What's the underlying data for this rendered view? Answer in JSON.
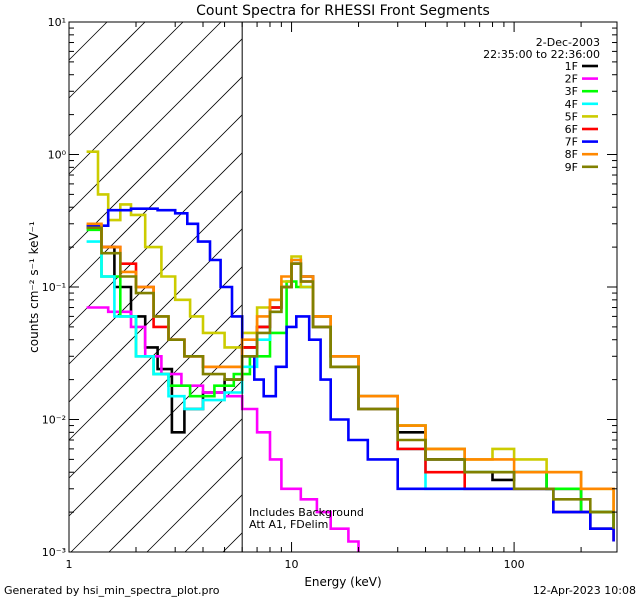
{
  "chart_data": {
    "type": "line",
    "title": "Count Spectra for RHESSI Front Segments",
    "xlabel": "Energy (keV)",
    "ylabel": "counts cm⁻² s⁻¹ keV⁻¹",
    "xscale": "log",
    "yscale": "log",
    "xlim": [
      1,
      290
    ],
    "ylim": [
      0.001,
      10
    ],
    "x_ticks": [
      {
        "value": 1,
        "label": "1"
      },
      {
        "value": 10,
        "label": "10"
      },
      {
        "value": 100,
        "label": "100"
      }
    ],
    "y_ticks": [
      {
        "value": 10,
        "label": "10¹"
      },
      {
        "value": 1,
        "label": "10⁰"
      },
      {
        "value": 0.1,
        "label": "10⁻¹"
      },
      {
        "value": 0.01,
        "label": "10⁻²"
      },
      {
        "value": 0.001,
        "label": "10⁻³"
      }
    ],
    "hatched_region": {
      "x_from": 1,
      "x_to": 6
    },
    "legend": {
      "date": "2-Dec-2003",
      "time_range": "22:35:00 to 22:36:00",
      "placement": "top-right"
    },
    "annotations": [
      "Includes Background",
      "Att A1, FDelim"
    ],
    "series": [
      {
        "name": "1F",
        "color": "#000000",
        "values": [
          [
            1.2,
            0.28
          ],
          [
            1.4,
            0.2
          ],
          [
            1.6,
            0.1
          ],
          [
            1.9,
            0.06
          ],
          [
            2.2,
            0.035
          ],
          [
            2.5,
            0.024
          ],
          [
            2.9,
            0.008
          ],
          [
            3.3,
            0.012
          ],
          [
            4,
            0.016
          ],
          [
            5,
            0.02
          ],
          [
            6,
            0.035
          ],
          [
            7,
            0.05
          ],
          [
            8,
            0.07
          ],
          [
            9,
            0.1
          ],
          [
            10,
            0.15
          ],
          [
            11,
            0.12
          ],
          [
            12.5,
            0.06
          ],
          [
            15,
            0.03
          ],
          [
            20,
            0.015
          ],
          [
            30,
            0.008
          ],
          [
            40,
            0.005
          ],
          [
            60,
            0.004
          ],
          [
            80,
            0.0035
          ],
          [
            100,
            0.004
          ],
          [
            140,
            0.003
          ],
          [
            200,
            0.002
          ],
          [
            280,
            0.0015
          ]
        ]
      },
      {
        "name": "2F",
        "color": "#ff00ff",
        "values": [
          [
            1.2,
            0.07
          ],
          [
            1.5,
            0.065
          ],
          [
            1.9,
            0.05
          ],
          [
            2.2,
            0.03
          ],
          [
            2.6,
            0.022
          ],
          [
            3.2,
            0.018
          ],
          [
            4,
            0.016
          ],
          [
            5,
            0.015
          ],
          [
            6,
            0.012
          ],
          [
            7,
            0.008
          ],
          [
            8,
            0.005
          ],
          [
            9,
            0.003
          ],
          [
            11,
            0.0025
          ],
          [
            13,
            0.002
          ],
          [
            15,
            0.0015
          ],
          [
            18,
            0.0012
          ],
          [
            20,
            0.001
          ]
        ]
      },
      {
        "name": "3F",
        "color": "#00ff00",
        "values": [
          [
            1.2,
            0.27
          ],
          [
            1.4,
            0.12
          ],
          [
            1.7,
            0.06
          ],
          [
            2,
            0.03
          ],
          [
            2.4,
            0.022
          ],
          [
            2.8,
            0.018
          ],
          [
            3.5,
            0.015
          ],
          [
            4.5,
            0.018
          ],
          [
            5.5,
            0.022
          ],
          [
            6.5,
            0.03
          ],
          [
            8,
            0.045
          ],
          [
            9.5,
            0.11
          ],
          [
            10.5,
            0.1
          ],
          [
            12.5,
            0.05
          ],
          [
            15,
            0.025
          ],
          [
            20,
            0.012
          ],
          [
            30,
            0.009
          ],
          [
            40,
            0.006
          ],
          [
            60,
            0.004
          ],
          [
            80,
            0.004
          ],
          [
            100,
            0.004
          ],
          [
            140,
            0.003
          ],
          [
            200,
            0.002
          ],
          [
            280,
            0.0015
          ]
        ]
      },
      {
        "name": "4F",
        "color": "#00ffff",
        "values": [
          [
            1.2,
            0.22
          ],
          [
            1.4,
            0.12
          ],
          [
            1.6,
            0.06
          ],
          [
            2,
            0.03
          ],
          [
            2.4,
            0.022
          ],
          [
            2.8,
            0.015
          ],
          [
            3.3,
            0.012
          ],
          [
            4,
            0.014
          ],
          [
            5,
            0.016
          ],
          [
            6,
            0.025
          ],
          [
            7,
            0.04
          ],
          [
            8,
            0.065
          ],
          [
            9,
            0.1
          ],
          [
            10,
            0.16
          ],
          [
            11,
            0.1
          ],
          [
            12.5,
            0.05
          ],
          [
            15,
            0.025
          ],
          [
            20,
            0.012
          ],
          [
            30,
            0.006
          ],
          [
            40,
            0.003
          ],
          [
            60,
            0.003
          ],
          [
            100,
            0.003
          ],
          [
            150,
            0.002
          ],
          [
            220,
            0.0015
          ],
          [
            280,
            0.0015
          ]
        ]
      },
      {
        "name": "5F",
        "color": "#cccc00",
        "values": [
          [
            1.2,
            1.05
          ],
          [
            1.35,
            0.5
          ],
          [
            1.5,
            0.32
          ],
          [
            1.7,
            0.42
          ],
          [
            1.9,
            0.35
          ],
          [
            2.2,
            0.2
          ],
          [
            2.6,
            0.12
          ],
          [
            3,
            0.08
          ],
          [
            3.5,
            0.06
          ],
          [
            4,
            0.045
          ],
          [
            5,
            0.035
          ],
          [
            6,
            0.045
          ],
          [
            7,
            0.07
          ],
          [
            8,
            0.08
          ],
          [
            9,
            0.11
          ],
          [
            10,
            0.17
          ],
          [
            11,
            0.1
          ],
          [
            12.5,
            0.06
          ],
          [
            15,
            0.03
          ],
          [
            20,
            0.015
          ],
          [
            30,
            0.009
          ],
          [
            40,
            0.006
          ],
          [
            60,
            0.005
          ],
          [
            80,
            0.006
          ],
          [
            100,
            0.005
          ],
          [
            140,
            0.004
          ],
          [
            200,
            0.003
          ],
          [
            280,
            0.002
          ]
        ]
      },
      {
        "name": "6F",
        "color": "#ff0000",
        "values": [
          [
            1.2,
            0.29
          ],
          [
            1.4,
            0.2
          ],
          [
            1.7,
            0.15
          ],
          [
            2,
            0.1
          ],
          [
            2.4,
            0.05
          ],
          [
            2.8,
            0.04
          ],
          [
            3.3,
            0.03
          ],
          [
            4,
            0.025
          ],
          [
            5,
            0.025
          ],
          [
            6,
            0.035
          ],
          [
            7,
            0.05
          ],
          [
            8,
            0.07
          ],
          [
            9,
            0.1
          ],
          [
            10,
            0.15
          ],
          [
            11,
            0.11
          ],
          [
            12.5,
            0.05
          ],
          [
            15,
            0.025
          ],
          [
            20,
            0.012
          ],
          [
            30,
            0.006
          ],
          [
            40,
            0.004
          ],
          [
            60,
            0.003
          ],
          [
            100,
            0.003
          ],
          [
            150,
            0.002
          ],
          [
            220,
            0.0015
          ],
          [
            280,
            0.0012
          ]
        ]
      },
      {
        "name": "7F",
        "color": "#0000ff",
        "values": [
          [
            1.2,
            0.29
          ],
          [
            1.5,
            0.38
          ],
          [
            1.9,
            0.39
          ],
          [
            2.5,
            0.38
          ],
          [
            3,
            0.36
          ],
          [
            3.4,
            0.3
          ],
          [
            3.8,
            0.22
          ],
          [
            4.3,
            0.16
          ],
          [
            4.8,
            0.1
          ],
          [
            5.4,
            0.06
          ],
          [
            6,
            0.03
          ],
          [
            6.8,
            0.02
          ],
          [
            7.5,
            0.015
          ],
          [
            8.5,
            0.025
          ],
          [
            9.5,
            0.05
          ],
          [
            10.5,
            0.06
          ],
          [
            12,
            0.04
          ],
          [
            13.5,
            0.02
          ],
          [
            15,
            0.01
          ],
          [
            18,
            0.007
          ],
          [
            22,
            0.005
          ],
          [
            30,
            0.003
          ],
          [
            40,
            0.003
          ],
          [
            60,
            0.003
          ],
          [
            100,
            0.003
          ],
          [
            150,
            0.002
          ],
          [
            220,
            0.0015
          ],
          [
            280,
            0.0012
          ]
        ]
      },
      {
        "name": "8F",
        "color": "#ff8800",
        "values": [
          [
            1.2,
            0.3
          ],
          [
            1.4,
            0.2
          ],
          [
            1.7,
            0.13
          ],
          [
            2,
            0.1
          ],
          [
            2.4,
            0.06
          ],
          [
            2.8,
            0.04
          ],
          [
            3.3,
            0.03
          ],
          [
            4,
            0.025
          ],
          [
            5,
            0.025
          ],
          [
            6,
            0.04
          ],
          [
            7,
            0.06
          ],
          [
            8,
            0.08
          ],
          [
            9,
            0.12
          ],
          [
            10,
            0.16
          ],
          [
            11,
            0.12
          ],
          [
            12.5,
            0.06
          ],
          [
            15,
            0.03
          ],
          [
            20,
            0.015
          ],
          [
            30,
            0.009
          ],
          [
            40,
            0.006
          ],
          [
            60,
            0.005
          ],
          [
            80,
            0.005
          ],
          [
            100,
            0.004
          ],
          [
            140,
            0.004
          ],
          [
            200,
            0.003
          ],
          [
            280,
            0.002
          ]
        ]
      },
      {
        "name": "9F",
        "color": "#808000",
        "values": [
          [
            1.2,
            0.28
          ],
          [
            1.4,
            0.18
          ],
          [
            1.7,
            0.12
          ],
          [
            2,
            0.09
          ],
          [
            2.4,
            0.06
          ],
          [
            2.8,
            0.04
          ],
          [
            3.3,
            0.03
          ],
          [
            4,
            0.022
          ],
          [
            5,
            0.02
          ],
          [
            6,
            0.03
          ],
          [
            7,
            0.045
          ],
          [
            8,
            0.065
          ],
          [
            9,
            0.1
          ],
          [
            10,
            0.15
          ],
          [
            11,
            0.11
          ],
          [
            12.5,
            0.05
          ],
          [
            15,
            0.025
          ],
          [
            20,
            0.012
          ],
          [
            30,
            0.007
          ],
          [
            40,
            0.005
          ],
          [
            60,
            0.004
          ],
          [
            100,
            0.003
          ],
          [
            150,
            0.0025
          ],
          [
            220,
            0.002
          ],
          [
            280,
            0.0015
          ]
        ]
      }
    ]
  },
  "footer": {
    "left": "Generated by hsi_min_spectra_plot.pro",
    "right": "12-Apr-2023 10:08"
  }
}
